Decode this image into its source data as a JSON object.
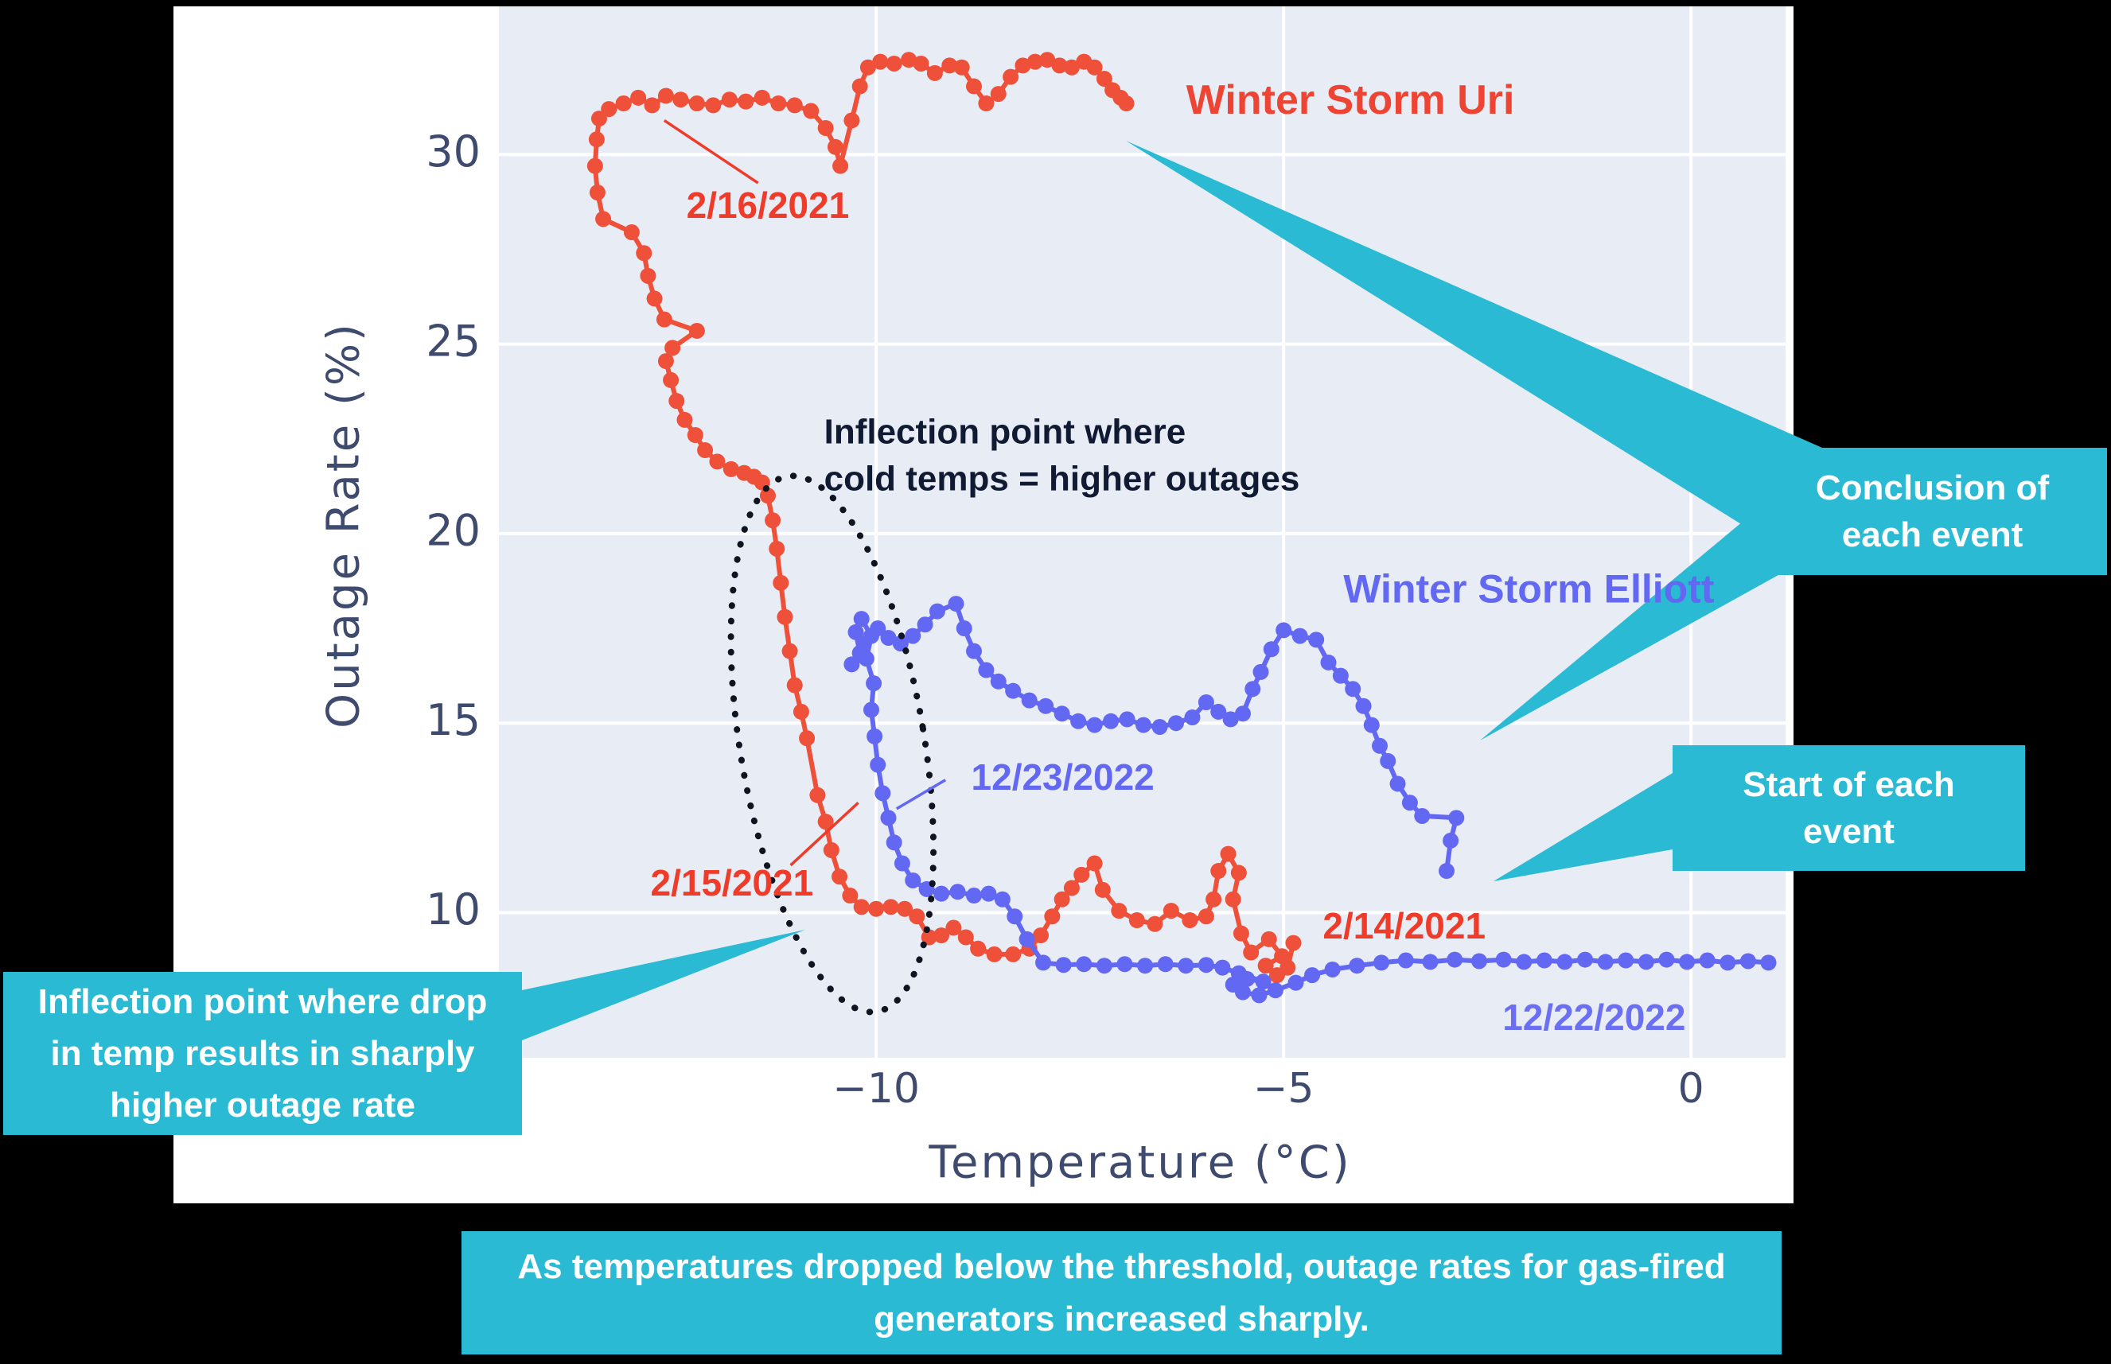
{
  "page": {
    "background": "#000000",
    "panel_background": "#ffffff"
  },
  "chart_data": {
    "type": "scatter",
    "title": "",
    "xlabel": "Temperature (°C)",
    "ylabel": "Outage Rate (%)",
    "xlim": [
      -14.63,
      1.16
    ],
    "ylim": [
      6.17,
      33.91
    ],
    "xticks": [
      -10,
      -5,
      0
    ],
    "xtick_labels": [
      "−10",
      "−5",
      "0"
    ],
    "yticks": [
      10,
      15,
      20,
      25,
      30
    ],
    "ytick_labels": [
      "10",
      "15",
      "20",
      "25",
      "30"
    ],
    "grid": true,
    "legend_position": "none",
    "plot_bg": "#E8ECF5",
    "grid_color": "#ffffff",
    "tick_color": "#3E4B6E",
    "series": [
      {
        "name": "Winter Storm Uri",
        "start_date": "2/14/2021",
        "color": "#EE5039",
        "points": [
          [
            -4.88,
            9.2
          ],
          [
            -4.95,
            8.55
          ],
          [
            -5.08,
            8.35
          ],
          [
            -5.22,
            8.6
          ],
          [
            -5.02,
            8.85
          ],
          [
            -5.18,
            9.3
          ],
          [
            -5.4,
            8.95
          ],
          [
            -5.52,
            9.45
          ],
          [
            -5.62,
            10.35
          ],
          [
            -5.55,
            11.05
          ],
          [
            -5.68,
            11.55
          ],
          [
            -5.8,
            11.1
          ],
          [
            -5.86,
            10.35
          ],
          [
            -5.95,
            9.9
          ],
          [
            -6.15,
            9.8
          ],
          [
            -6.38,
            10.05
          ],
          [
            -6.58,
            9.7
          ],
          [
            -6.8,
            9.8
          ],
          [
            -7.02,
            10.05
          ],
          [
            -7.22,
            10.6
          ],
          [
            -7.32,
            11.3
          ],
          [
            -7.48,
            11.0
          ],
          [
            -7.6,
            10.65
          ],
          [
            -7.72,
            10.35
          ],
          [
            -7.84,
            9.9
          ],
          [
            -7.98,
            9.4
          ],
          [
            -8.12,
            9.05
          ],
          [
            -8.32,
            8.9
          ],
          [
            -8.55,
            8.9
          ],
          [
            -8.75,
            9.05
          ],
          [
            -8.9,
            9.35
          ],
          [
            -9.05,
            9.6
          ],
          [
            -9.2,
            9.4
          ],
          [
            -9.35,
            9.35
          ],
          [
            -9.5,
            9.9
          ],
          [
            -9.65,
            10.1
          ],
          [
            -9.82,
            10.15
          ],
          [
            -10.0,
            10.1
          ],
          [
            -10.18,
            10.15
          ],
          [
            -10.32,
            10.45
          ],
          [
            -10.45,
            10.95
          ],
          [
            -10.55,
            11.65
          ],
          [
            -10.62,
            12.4
          ],
          [
            -10.72,
            13.1
          ],
          [
            -10.85,
            14.6
          ],
          [
            -10.92,
            15.3
          ],
          [
            -11.0,
            16.0
          ],
          [
            -11.06,
            16.9
          ],
          [
            -11.12,
            17.8
          ],
          [
            -11.17,
            18.7
          ],
          [
            -11.22,
            19.6
          ],
          [
            -11.27,
            20.35
          ],
          [
            -11.33,
            21.0
          ],
          [
            -11.4,
            21.35
          ],
          [
            -11.5,
            21.5
          ],
          [
            -11.62,
            21.6
          ],
          [
            -11.78,
            21.7
          ],
          [
            -11.95,
            21.9
          ],
          [
            -12.1,
            22.2
          ],
          [
            -12.22,
            22.6
          ],
          [
            -12.35,
            23.0
          ],
          [
            -12.45,
            23.5
          ],
          [
            -12.52,
            24.05
          ],
          [
            -12.58,
            24.55
          ],
          [
            -12.5,
            24.9
          ],
          [
            -12.2,
            25.35
          ],
          [
            -12.6,
            25.65
          ],
          [
            -12.72,
            26.2
          ],
          [
            -12.8,
            26.8
          ],
          [
            -12.85,
            27.4
          ],
          [
            -13.0,
            27.95
          ],
          [
            -13.35,
            28.3
          ],
          [
            -13.42,
            29.0
          ],
          [
            -13.45,
            29.7
          ],
          [
            -13.43,
            30.4
          ],
          [
            -13.4,
            30.95
          ],
          [
            -13.28,
            31.2
          ],
          [
            -13.1,
            31.35
          ],
          [
            -12.92,
            31.5
          ],
          [
            -12.75,
            31.3
          ],
          [
            -12.58,
            31.55
          ],
          [
            -12.4,
            31.45
          ],
          [
            -12.2,
            31.35
          ],
          [
            -12.0,
            31.3
          ],
          [
            -11.8,
            31.45
          ],
          [
            -11.6,
            31.4
          ],
          [
            -11.4,
            31.5
          ],
          [
            -11.2,
            31.35
          ],
          [
            -11.0,
            31.3
          ],
          [
            -10.8,
            31.15
          ],
          [
            -10.62,
            30.7
          ],
          [
            -10.5,
            30.2
          ],
          [
            -10.44,
            29.7
          ],
          [
            -10.3,
            30.9
          ],
          [
            -10.2,
            31.8
          ],
          [
            -10.1,
            32.3
          ],
          [
            -9.95,
            32.45
          ],
          [
            -9.78,
            32.4
          ],
          [
            -9.6,
            32.5
          ],
          [
            -9.45,
            32.4
          ],
          [
            -9.28,
            32.15
          ],
          [
            -9.1,
            32.35
          ],
          [
            -8.95,
            32.3
          ],
          [
            -8.8,
            31.8
          ],
          [
            -8.65,
            31.35
          ],
          [
            -8.5,
            31.6
          ],
          [
            -8.35,
            32.05
          ],
          [
            -8.2,
            32.35
          ],
          [
            -8.05,
            32.45
          ],
          [
            -7.9,
            32.5
          ],
          [
            -7.75,
            32.35
          ],
          [
            -7.6,
            32.3
          ],
          [
            -7.45,
            32.45
          ],
          [
            -7.32,
            32.3
          ],
          [
            -7.2,
            32.0
          ],
          [
            -7.1,
            31.7
          ],
          [
            -7.0,
            31.5
          ],
          [
            -6.93,
            31.35
          ]
        ]
      },
      {
        "name": "Winter Storm Elliott",
        "start_date": "12/22/2022",
        "color": "#6268F2",
        "points": [
          [
            0.95,
            8.68
          ],
          [
            0.7,
            8.72
          ],
          [
            0.45,
            8.68
          ],
          [
            0.2,
            8.74
          ],
          [
            -0.05,
            8.7
          ],
          [
            -0.3,
            8.76
          ],
          [
            -0.55,
            8.7
          ],
          [
            -0.8,
            8.74
          ],
          [
            -1.05,
            8.7
          ],
          [
            -1.3,
            8.76
          ],
          [
            -1.55,
            8.7
          ],
          [
            -1.8,
            8.74
          ],
          [
            -2.05,
            8.7
          ],
          [
            -2.3,
            8.76
          ],
          [
            -2.6,
            8.72
          ],
          [
            -2.9,
            8.76
          ],
          [
            -3.2,
            8.7
          ],
          [
            -3.5,
            8.74
          ],
          [
            -3.8,
            8.68
          ],
          [
            -4.1,
            8.6
          ],
          [
            -4.4,
            8.5
          ],
          [
            -4.65,
            8.35
          ],
          [
            -4.85,
            8.15
          ],
          [
            -5.1,
            7.95
          ],
          [
            -5.3,
            7.82
          ],
          [
            -5.5,
            7.9
          ],
          [
            -5.62,
            8.1
          ],
          [
            -5.45,
            8.25
          ],
          [
            -5.25,
            8.18
          ],
          [
            -5.55,
            8.4
          ],
          [
            -5.75,
            8.55
          ],
          [
            -5.95,
            8.62
          ],
          [
            -6.2,
            8.6
          ],
          [
            -6.45,
            8.64
          ],
          [
            -6.7,
            8.6
          ],
          [
            -6.95,
            8.64
          ],
          [
            -7.2,
            8.6
          ],
          [
            -7.45,
            8.64
          ],
          [
            -7.7,
            8.62
          ],
          [
            -7.95,
            8.68
          ],
          [
            -8.15,
            9.3
          ],
          [
            -8.3,
            9.9
          ],
          [
            -8.45,
            10.35
          ],
          [
            -8.62,
            10.5
          ],
          [
            -8.8,
            10.45
          ],
          [
            -9.0,
            10.55
          ],
          [
            -9.2,
            10.5
          ],
          [
            -9.38,
            10.62
          ],
          [
            -9.55,
            10.85
          ],
          [
            -9.68,
            11.3
          ],
          [
            -9.78,
            11.85
          ],
          [
            -9.85,
            12.5
          ],
          [
            -9.92,
            13.15
          ],
          [
            -9.98,
            13.9
          ],
          [
            -10.02,
            14.65
          ],
          [
            -10.06,
            15.35
          ],
          [
            -10.03,
            16.05
          ],
          [
            -10.12,
            16.7
          ],
          [
            -10.06,
            17.3
          ],
          [
            -10.18,
            17.75
          ],
          [
            -10.25,
            17.4
          ],
          [
            -10.2,
            16.85
          ],
          [
            -10.3,
            16.55
          ],
          [
            -10.15,
            17.1
          ],
          [
            -9.98,
            17.5
          ],
          [
            -9.85,
            17.25
          ],
          [
            -9.7,
            17.1
          ],
          [
            -9.55,
            17.3
          ],
          [
            -9.4,
            17.6
          ],
          [
            -9.25,
            17.95
          ],
          [
            -9.02,
            18.15
          ],
          [
            -8.92,
            17.5
          ],
          [
            -8.8,
            16.9
          ],
          [
            -8.65,
            16.4
          ],
          [
            -8.5,
            16.1
          ],
          [
            -8.32,
            15.85
          ],
          [
            -8.12,
            15.6
          ],
          [
            -7.92,
            15.45
          ],
          [
            -7.72,
            15.25
          ],
          [
            -7.52,
            15.05
          ],
          [
            -7.32,
            14.95
          ],
          [
            -7.12,
            15.05
          ],
          [
            -6.92,
            15.1
          ],
          [
            -6.72,
            14.95
          ],
          [
            -6.52,
            14.9
          ],
          [
            -6.32,
            15.0
          ],
          [
            -6.12,
            15.15
          ],
          [
            -5.95,
            15.55
          ],
          [
            -5.8,
            15.3
          ],
          [
            -5.65,
            15.1
          ],
          [
            -5.5,
            15.25
          ],
          [
            -5.38,
            15.9
          ],
          [
            -5.28,
            16.35
          ],
          [
            -5.15,
            16.95
          ],
          [
            -5.0,
            17.45
          ],
          [
            -4.8,
            17.3
          ],
          [
            -4.6,
            17.2
          ],
          [
            -4.45,
            16.6
          ],
          [
            -4.3,
            16.25
          ],
          [
            -4.15,
            15.9
          ],
          [
            -4.02,
            15.45
          ],
          [
            -3.92,
            14.95
          ],
          [
            -3.82,
            14.4
          ],
          [
            -3.72,
            14.0
          ],
          [
            -3.6,
            13.4
          ],
          [
            -3.45,
            12.9
          ],
          [
            -3.3,
            12.55
          ],
          [
            -2.88,
            12.5
          ],
          [
            -2.95,
            11.9
          ],
          [
            -3.0,
            11.1
          ]
        ]
      }
    ],
    "annotations": [
      {
        "text": "Winter Storm Uri",
        "x": -4.18,
        "y": 31.44,
        "color": "#EE4433",
        "size": 52,
        "align": "center"
      },
      {
        "text": "Winter Storm Elliott",
        "x": -1.99,
        "y": 18.52,
        "color": "#6268F2",
        "size": 50,
        "align": "center"
      },
      {
        "text": "Inflection point where\ncold temps = higher outages",
        "x": -10.64,
        "y": 22.06,
        "color": "#101B33",
        "size": 44,
        "align": "left"
      },
      {
        "text": "2/16/2021",
        "x": -11.33,
        "y": 28.67,
        "color": "#EE3B2A",
        "size": 46,
        "align": "center",
        "leader": [
          [
            -12.6,
            30.9
          ],
          [
            -11.45,
            29.25
          ]
        ]
      },
      {
        "text": "2/15/2021",
        "x": -11.77,
        "y": 10.79,
        "color": "#EE3B2A",
        "size": 46,
        "align": "center",
        "leader": [
          [
            -10.22,
            12.9
          ],
          [
            -11.05,
            11.25
          ]
        ]
      },
      {
        "text": "2/14/2021",
        "x": -3.52,
        "y": 9.65,
        "color": "#EE3B2A",
        "size": 46,
        "align": "center"
      },
      {
        "text": "12/23/2022",
        "x": -7.71,
        "y": 13.58,
        "color": "#6268F2",
        "size": 46,
        "align": "center",
        "leader": [
          [
            -9.75,
            12.74
          ],
          [
            -9.15,
            13.5
          ]
        ]
      },
      {
        "text": "12/22/2022",
        "x": -1.19,
        "y": 7.24,
        "color": "#6B6FF2",
        "size": 46,
        "align": "center"
      }
    ],
    "ellipse": {
      "cx": -10.54,
      "cy": 14.45,
      "rx": 1.13,
      "ry": 7.16,
      "rotation_deg": -9.5,
      "color": "#0E1420",
      "style": "dotted"
    }
  },
  "callouts": {
    "accent_color": "#2BBAD3",
    "text_color": "#ffffff",
    "conclusion": {
      "text": "Conclusion of\neach event"
    },
    "start": {
      "text": "Start of each\nevent"
    },
    "inflection_drop": {
      "text": "Inflection point where drop\nin temp results in sharply\nhigher outage rate"
    },
    "caption": {
      "text": "As temperatures dropped below the threshold, outage rates for gas-fired\ngenerators increased sharply."
    }
  }
}
